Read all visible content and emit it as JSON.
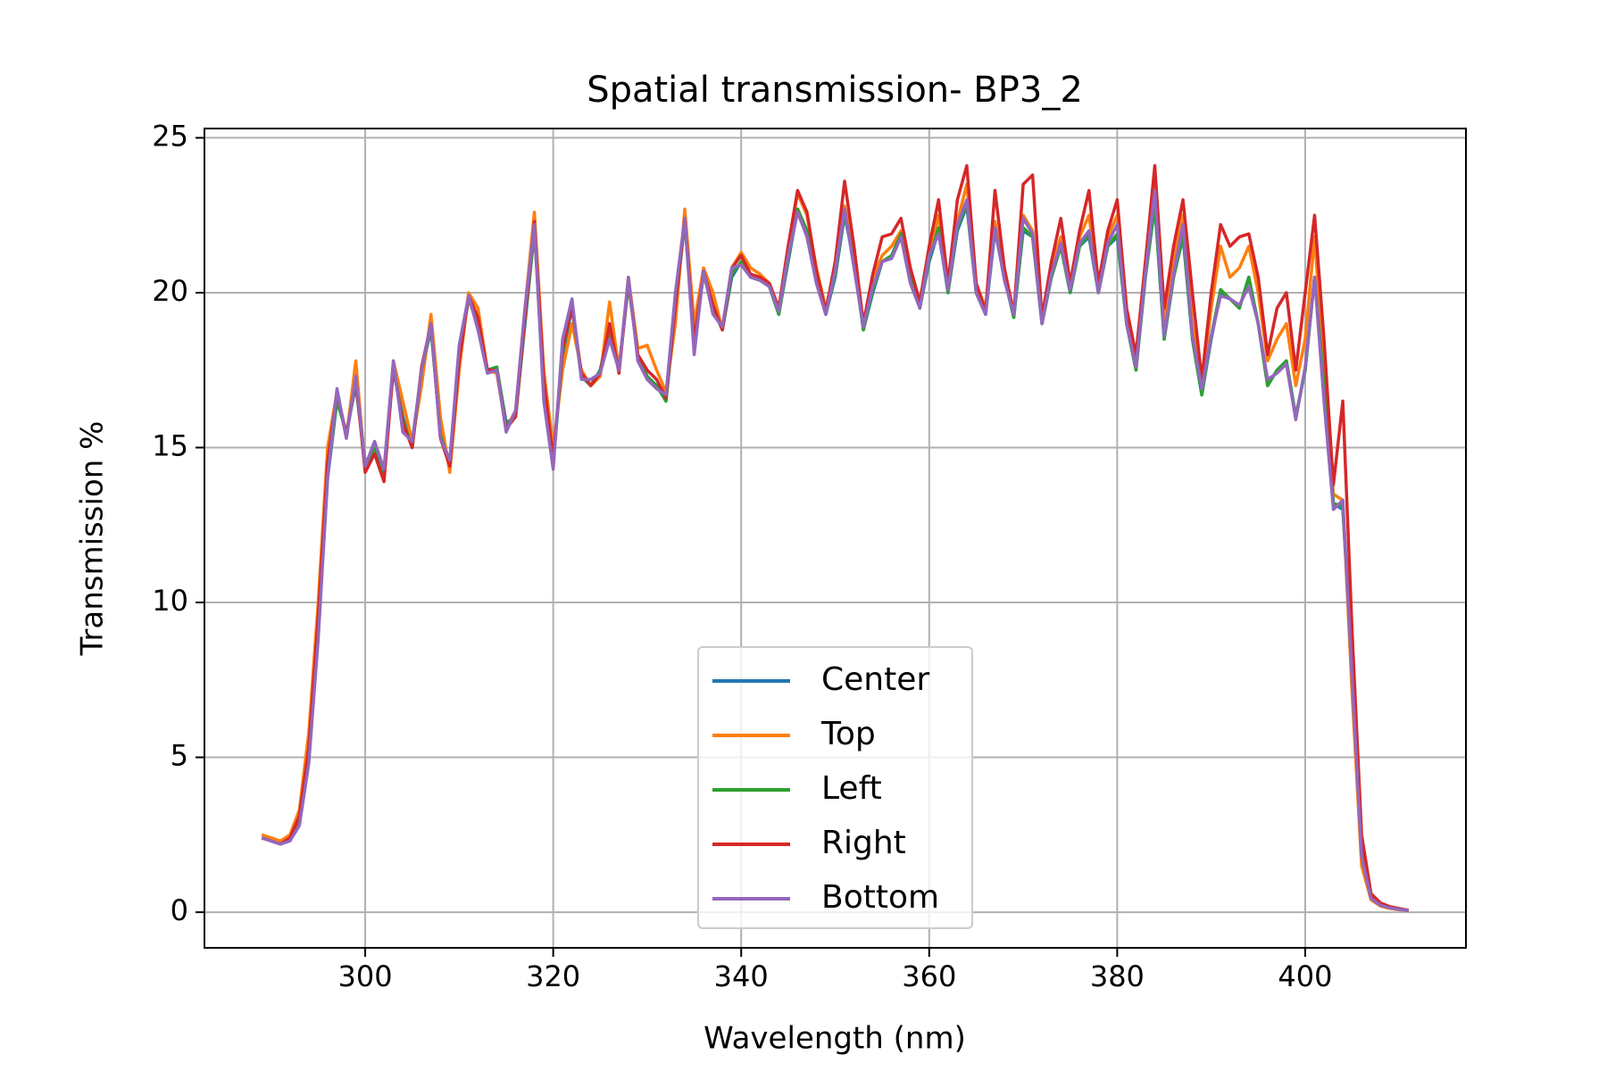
{
  "chart_data": {
    "type": "line",
    "title": "Spatial transmission- BP3_2",
    "x_label": "Wavelength (nm)",
    "y_label": "Transmission %",
    "x": [
      289,
      290,
      291,
      292,
      293,
      294,
      295,
      296,
      297,
      298,
      299,
      300,
      301,
      302,
      303,
      304,
      305,
      306,
      307,
      308,
      309,
      310,
      311,
      312,
      313,
      314,
      315,
      316,
      317,
      318,
      319,
      320,
      321,
      322,
      323,
      324,
      325,
      326,
      327,
      328,
      329,
      330,
      331,
      332,
      333,
      334,
      335,
      336,
      337,
      338,
      339,
      340,
      341,
      342,
      343,
      344,
      345,
      346,
      347,
      348,
      349,
      350,
      351,
      352,
      353,
      354,
      355,
      356,
      357,
      358,
      359,
      360,
      361,
      362,
      363,
      364,
      365,
      366,
      367,
      368,
      369,
      370,
      371,
      372,
      373,
      374,
      375,
      376,
      377,
      378,
      379,
      380,
      381,
      382,
      383,
      384,
      385,
      386,
      387,
      388,
      389,
      390,
      391,
      392,
      393,
      394,
      395,
      396,
      397,
      398,
      399,
      400,
      401,
      402,
      403,
      404,
      405,
      406,
      407,
      408,
      409,
      410,
      411
    ],
    "series": [
      {
        "name": "Center",
        "color": "#1f77b4",
        "values": [
          2.4,
          2.3,
          2.2,
          2.4,
          3.0,
          5.0,
          9.0,
          14.0,
          16.5,
          15.5,
          17.0,
          14.5,
          15.0,
          14.2,
          17.5,
          16.0,
          15.0,
          17.5,
          18.8,
          15.5,
          14.5,
          18.0,
          19.8,
          19.0,
          17.5,
          17.6,
          15.8,
          16.0,
          19.0,
          22.0,
          17.0,
          14.5,
          18.0,
          19.5,
          17.3,
          17.0,
          17.5,
          18.8,
          17.5,
          20.3,
          18.0,
          17.3,
          17.0,
          16.5,
          19.5,
          22.3,
          18.5,
          20.6,
          19.5,
          18.8,
          20.5,
          21.0,
          20.5,
          20.4,
          20.2,
          19.3,
          21.0,
          22.7,
          22.0,
          20.5,
          19.3,
          20.5,
          22.5,
          21.0,
          18.8,
          20.0,
          21.0,
          21.2,
          21.9,
          20.5,
          19.5,
          21.0,
          22.0,
          20.0,
          22.0,
          22.8,
          20.0,
          19.3,
          22.0,
          20.5,
          19.2,
          22.0,
          21.8,
          19.0,
          20.5,
          21.5,
          20.0,
          21.5,
          21.8,
          20.0,
          21.5,
          21.8,
          19.0,
          17.5,
          20.5,
          22.8,
          18.5,
          20.5,
          21.8,
          18.5,
          16.7,
          18.5,
          20.0,
          19.8,
          19.5,
          20.5,
          19.0,
          17.0,
          17.5,
          17.8,
          16.0,
          17.5,
          20.5,
          17.0,
          13.2,
          13.0,
          8.0,
          2.0,
          0.5,
          0.25,
          0.15,
          0.1,
          0.05
        ]
      },
      {
        "name": "Top",
        "color": "#ff7f0e",
        "values": [
          2.5,
          2.4,
          2.3,
          2.5,
          3.3,
          5.8,
          10.0,
          15.0,
          16.8,
          15.3,
          17.8,
          14.3,
          14.8,
          14.0,
          17.8,
          16.5,
          15.2,
          17.0,
          19.3,
          16.0,
          14.2,
          17.5,
          20.0,
          19.5,
          17.5,
          17.4,
          15.6,
          16.2,
          19.5,
          22.6,
          17.5,
          15.0,
          17.5,
          19.0,
          17.5,
          17.0,
          17.3,
          19.7,
          17.5,
          20.5,
          18.2,
          18.3,
          17.5,
          16.8,
          19.0,
          22.7,
          19.0,
          20.8,
          20.0,
          18.8,
          20.8,
          21.3,
          20.8,
          20.6,
          20.3,
          19.5,
          21.5,
          23.2,
          22.5,
          20.8,
          19.5,
          20.8,
          22.8,
          21.3,
          19.0,
          20.5,
          21.2,
          21.5,
          22.0,
          20.7,
          19.7,
          21.3,
          22.5,
          20.2,
          22.3,
          23.5,
          20.3,
          19.5,
          22.3,
          20.7,
          19.4,
          22.5,
          22.0,
          19.2,
          20.8,
          21.8,
          20.3,
          21.8,
          22.5,
          20.2,
          21.8,
          22.5,
          19.3,
          17.8,
          20.8,
          23.5,
          19.0,
          21.0,
          22.5,
          19.0,
          17.0,
          19.5,
          21.5,
          20.5,
          20.8,
          21.5,
          20.0,
          17.8,
          18.5,
          19.0,
          17.0,
          18.5,
          21.8,
          17.5,
          13.5,
          13.3,
          7.0,
          1.5,
          0.4,
          0.2,
          0.12,
          0.08,
          0.05
        ]
      },
      {
        "name": "Left",
        "color": "#2ca02c",
        "values": [
          2.4,
          2.3,
          2.2,
          2.4,
          3.0,
          5.1,
          9.1,
          14.1,
          16.6,
          15.4,
          17.1,
          14.4,
          15.0,
          14.2,
          17.6,
          15.9,
          15.0,
          17.5,
          18.9,
          15.4,
          14.5,
          18.1,
          19.8,
          19.0,
          17.5,
          17.6,
          15.7,
          16.0,
          19.1,
          22.1,
          16.9,
          14.5,
          18.1,
          19.6,
          17.3,
          17.0,
          17.5,
          18.8,
          17.5,
          20.3,
          18.0,
          17.3,
          17.0,
          16.5,
          19.6,
          22.3,
          18.4,
          20.6,
          19.5,
          18.8,
          20.6,
          21.0,
          20.5,
          20.4,
          20.2,
          19.3,
          21.1,
          22.7,
          22.0,
          20.5,
          19.3,
          20.6,
          22.6,
          21.0,
          18.8,
          20.1,
          21.0,
          21.2,
          21.9,
          20.5,
          19.5,
          21.1,
          22.1,
          20.0,
          22.1,
          22.9,
          20.0,
          19.3,
          22.1,
          20.5,
          19.2,
          22.1,
          21.8,
          19.0,
          20.5,
          21.5,
          20.0,
          21.5,
          21.9,
          20.0,
          21.5,
          21.9,
          19.0,
          17.5,
          20.5,
          22.9,
          18.5,
          20.5,
          21.9,
          18.5,
          16.7,
          18.6,
          20.1,
          19.8,
          19.5,
          20.5,
          19.0,
          17.0,
          17.5,
          17.8,
          16.0,
          17.5,
          20.5,
          17.0,
          13.2,
          13.1,
          8.0,
          2.0,
          0.5,
          0.25,
          0.15,
          0.1,
          0.05
        ]
      },
      {
        "name": "Right",
        "color": "#d62728",
        "values": [
          2.4,
          2.3,
          2.2,
          2.4,
          3.1,
          5.3,
          9.5,
          14.5,
          16.8,
          15.4,
          17.2,
          14.2,
          14.8,
          13.9,
          17.6,
          15.8,
          15.0,
          17.6,
          19.0,
          15.3,
          14.4,
          17.8,
          19.9,
          19.2,
          17.5,
          17.5,
          15.6,
          16.0,
          19.2,
          22.3,
          17.2,
          14.6,
          18.2,
          19.6,
          17.4,
          17.0,
          17.4,
          19.0,
          17.4,
          20.4,
          18.0,
          17.5,
          17.2,
          16.6,
          19.6,
          22.4,
          18.4,
          20.7,
          19.6,
          18.8,
          20.8,
          21.2,
          20.6,
          20.5,
          20.3,
          19.5,
          21.5,
          23.3,
          22.6,
          20.7,
          19.4,
          21.0,
          23.6,
          21.5,
          19.0,
          20.6,
          21.8,
          21.9,
          22.4,
          20.8,
          19.7,
          21.5,
          23.0,
          20.3,
          23.0,
          24.1,
          20.3,
          19.4,
          23.3,
          20.8,
          19.3,
          23.5,
          23.8,
          19.2,
          21.0,
          22.4,
          20.3,
          22.0,
          23.3,
          20.3,
          22.0,
          23.0,
          19.5,
          18.0,
          21.0,
          24.1,
          19.5,
          21.5,
          23.0,
          20.0,
          17.2,
          20.0,
          22.2,
          21.5,
          21.8,
          21.9,
          20.5,
          18.0,
          19.5,
          20.0,
          17.5,
          20.0,
          22.5,
          18.5,
          13.8,
          16.5,
          9.0,
          2.5,
          0.6,
          0.3,
          0.18,
          0.12,
          0.06
        ]
      },
      {
        "name": "Bottom",
        "color": "#9467bd",
        "values": [
          2.4,
          2.3,
          2.2,
          2.3,
          2.8,
          4.8,
          8.8,
          14.0,
          16.9,
          15.3,
          17.3,
          14.4,
          15.2,
          14.3,
          17.8,
          15.5,
          15.2,
          17.5,
          19.0,
          15.3,
          14.6,
          18.3,
          19.9,
          18.8,
          17.4,
          17.5,
          15.5,
          16.2,
          19.5,
          22.2,
          16.5,
          14.3,
          18.5,
          19.8,
          17.2,
          17.2,
          17.4,
          18.5,
          17.5,
          20.5,
          17.8,
          17.2,
          16.9,
          16.7,
          20.0,
          22.4,
          18.0,
          20.7,
          19.3,
          18.9,
          20.8,
          20.9,
          20.5,
          20.4,
          20.2,
          19.4,
          21.2,
          22.6,
          21.8,
          20.3,
          19.3,
          20.7,
          22.7,
          20.8,
          18.9,
          20.2,
          21.0,
          21.1,
          21.8,
          20.3,
          19.5,
          21.2,
          21.9,
          20.1,
          22.2,
          23.0,
          20.0,
          19.3,
          22.1,
          20.4,
          19.3,
          22.4,
          21.9,
          19.0,
          20.6,
          21.6,
          20.1,
          21.6,
          22.0,
          20.0,
          21.6,
          22.2,
          19.0,
          17.6,
          20.6,
          23.3,
          18.6,
          20.6,
          22.2,
          18.6,
          16.9,
          18.6,
          19.9,
          19.8,
          19.6,
          20.2,
          19.0,
          17.2,
          17.4,
          17.7,
          15.9,
          17.6,
          20.5,
          16.5,
          13.0,
          13.3,
          7.5,
          1.8,
          0.45,
          0.22,
          0.14,
          0.09,
          0.05
        ]
      }
    ],
    "xlim": [
      282.9,
      417.1
    ],
    "xticks": [
      300,
      320,
      340,
      360,
      380,
      400
    ],
    "ylim": [
      -1.15,
      25.3
    ],
    "yticks": [
      0,
      5,
      10,
      15,
      20,
      25
    ],
    "grid": true,
    "legend": "lower center"
  }
}
